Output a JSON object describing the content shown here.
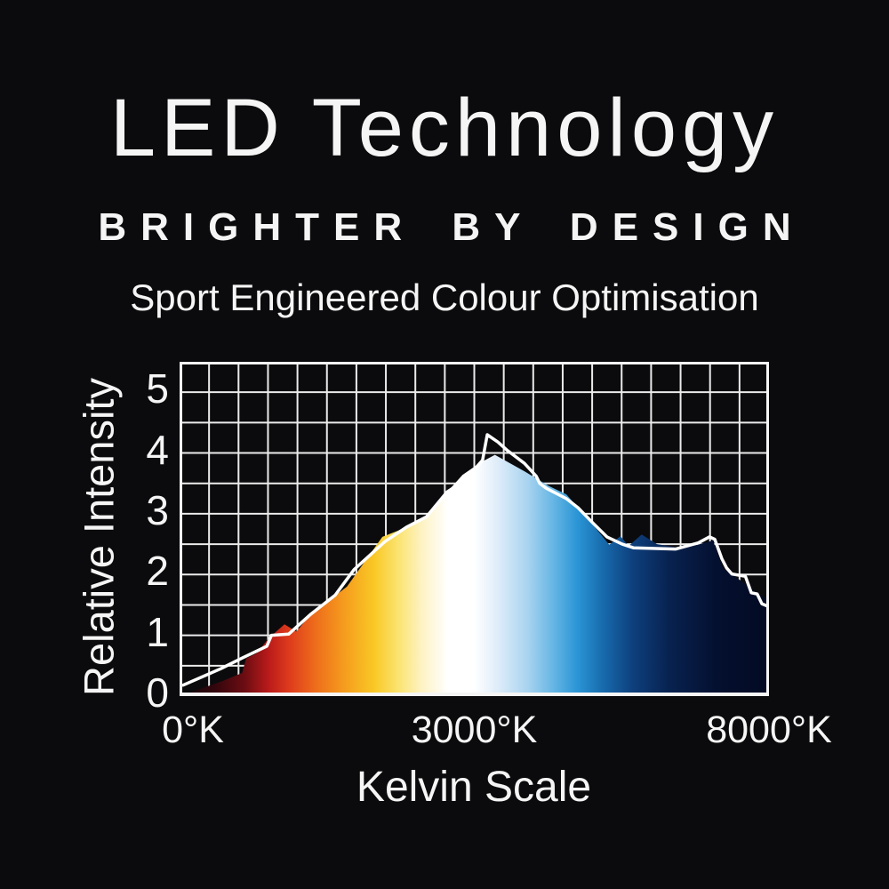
{
  "page": {
    "background_color": "#0b0b0d",
    "text_color": "#f5f5f5"
  },
  "header": {
    "title": "LED Technology",
    "tagline": "BRIGHTER BY DESIGN",
    "subtitle": "Sport Engineered Colour Optimisation"
  },
  "chart_data": {
    "type": "area",
    "title": "",
    "xlabel": "Kelvin Scale",
    "ylabel": "Relative Intensity",
    "x_ticks": [
      {
        "label": "0°K",
        "pos": 0
      },
      {
        "label": "3000°K",
        "pos": 0.5
      },
      {
        "label": "8000°K",
        "pos": 1
      }
    ],
    "x_range_kelvin": [
      0,
      8000
    ],
    "y_ticks": [
      0,
      1,
      2,
      3,
      4,
      5
    ],
    "y_max_display": 5.5,
    "grid": {
      "cols": 20,
      "rows": 11,
      "on": true,
      "color": "#ebebeb",
      "border_color": "#f5f5f5"
    },
    "legend": "none",
    "series": [
      {
        "name": "colour-spectrum-area",
        "style": "filled area with kelvin colour-temperature gradient",
        "points": [
          [
            0.0,
            0.0
          ],
          [
            0.068,
            0.23
          ],
          [
            0.106,
            0.38
          ],
          [
            0.113,
            0.62
          ],
          [
            0.13,
            0.7
          ],
          [
            0.152,
            0.96
          ],
          [
            0.178,
            1.18
          ],
          [
            0.198,
            1.06
          ],
          [
            0.223,
            1.35
          ],
          [
            0.284,
            1.8
          ],
          [
            0.344,
            2.62
          ],
          [
            0.37,
            2.72
          ],
          [
            0.415,
            2.93
          ],
          [
            0.48,
            3.64
          ],
          [
            0.51,
            3.84
          ],
          [
            0.535,
            3.97
          ],
          [
            0.585,
            3.7
          ],
          [
            0.626,
            3.46
          ],
          [
            0.656,
            3.32
          ],
          [
            0.691,
            2.94
          ],
          [
            0.729,
            2.49
          ],
          [
            0.748,
            2.63
          ],
          [
            0.762,
            2.47
          ],
          [
            0.784,
            2.66
          ],
          [
            0.81,
            2.5
          ],
          [
            0.842,
            2.45
          ],
          [
            0.875,
            2.48
          ],
          [
            0.905,
            2.56
          ],
          [
            0.922,
            2.1
          ],
          [
            0.952,
            1.9
          ],
          [
            0.975,
            1.72
          ],
          [
            1.0,
            1.58
          ]
        ]
      },
      {
        "name": "relative-intensity-line",
        "style": "white reference line",
        "color": "#ffffff",
        "points": [
          [
            0.006,
            0.18
          ],
          [
            0.07,
            0.45
          ],
          [
            0.107,
            0.63
          ],
          [
            0.148,
            0.82
          ],
          [
            0.156,
            1.0
          ],
          [
            0.185,
            1.02
          ],
          [
            0.223,
            1.35
          ],
          [
            0.264,
            1.66
          ],
          [
            0.296,
            2.08
          ],
          [
            0.348,
            2.54
          ],
          [
            0.385,
            2.78
          ],
          [
            0.419,
            2.95
          ],
          [
            0.454,
            3.36
          ],
          [
            0.484,
            3.55
          ],
          [
            0.514,
            3.88
          ],
          [
            0.522,
            4.3
          ],
          [
            0.54,
            4.18
          ],
          [
            0.555,
            4.05
          ],
          [
            0.585,
            3.83
          ],
          [
            0.605,
            3.62
          ],
          [
            0.611,
            3.5
          ],
          [
            0.622,
            3.42
          ],
          [
            0.656,
            3.25
          ],
          [
            0.676,
            3.1
          ],
          [
            0.701,
            2.85
          ],
          [
            0.725,
            2.62
          ],
          [
            0.751,
            2.5
          ],
          [
            0.77,
            2.44
          ],
          [
            0.842,
            2.42
          ],
          [
            0.88,
            2.52
          ],
          [
            0.899,
            2.62
          ],
          [
            0.908,
            2.58
          ],
          [
            0.92,
            2.26
          ],
          [
            0.928,
            2.11
          ],
          [
            0.937,
            2.01
          ],
          [
            0.96,
            1.97
          ],
          [
            0.97,
            1.7
          ],
          [
            0.98,
            1.68
          ],
          [
            0.988,
            1.52
          ],
          [
            1.0,
            1.47
          ]
        ]
      }
    ],
    "gradient_stops": [
      {
        "pos": 0.0,
        "color": "#10030a"
      },
      {
        "pos": 0.06,
        "color": "#33060d"
      },
      {
        "pos": 0.11,
        "color": "#6b0d12"
      },
      {
        "pos": 0.15,
        "color": "#b81a1a"
      },
      {
        "pos": 0.185,
        "color": "#dd3a1c"
      },
      {
        "pos": 0.23,
        "color": "#ee6c1b"
      },
      {
        "pos": 0.28,
        "color": "#f59d1e"
      },
      {
        "pos": 0.33,
        "color": "#f9c825"
      },
      {
        "pos": 0.37,
        "color": "#fbe36e"
      },
      {
        "pos": 0.41,
        "color": "#fdf2c2"
      },
      {
        "pos": 0.455,
        "color": "#ffffff"
      },
      {
        "pos": 0.5,
        "color": "#ffffff"
      },
      {
        "pos": 0.545,
        "color": "#d9eaf8"
      },
      {
        "pos": 0.59,
        "color": "#a9d4f0"
      },
      {
        "pos": 0.635,
        "color": "#64b5e4"
      },
      {
        "pos": 0.675,
        "color": "#2a95d5"
      },
      {
        "pos": 0.72,
        "color": "#1769ab"
      },
      {
        "pos": 0.77,
        "color": "#0e3f7c"
      },
      {
        "pos": 0.83,
        "color": "#082250"
      },
      {
        "pos": 0.91,
        "color": "#041030"
      },
      {
        "pos": 1.0,
        "color": "#030a22"
      }
    ]
  }
}
